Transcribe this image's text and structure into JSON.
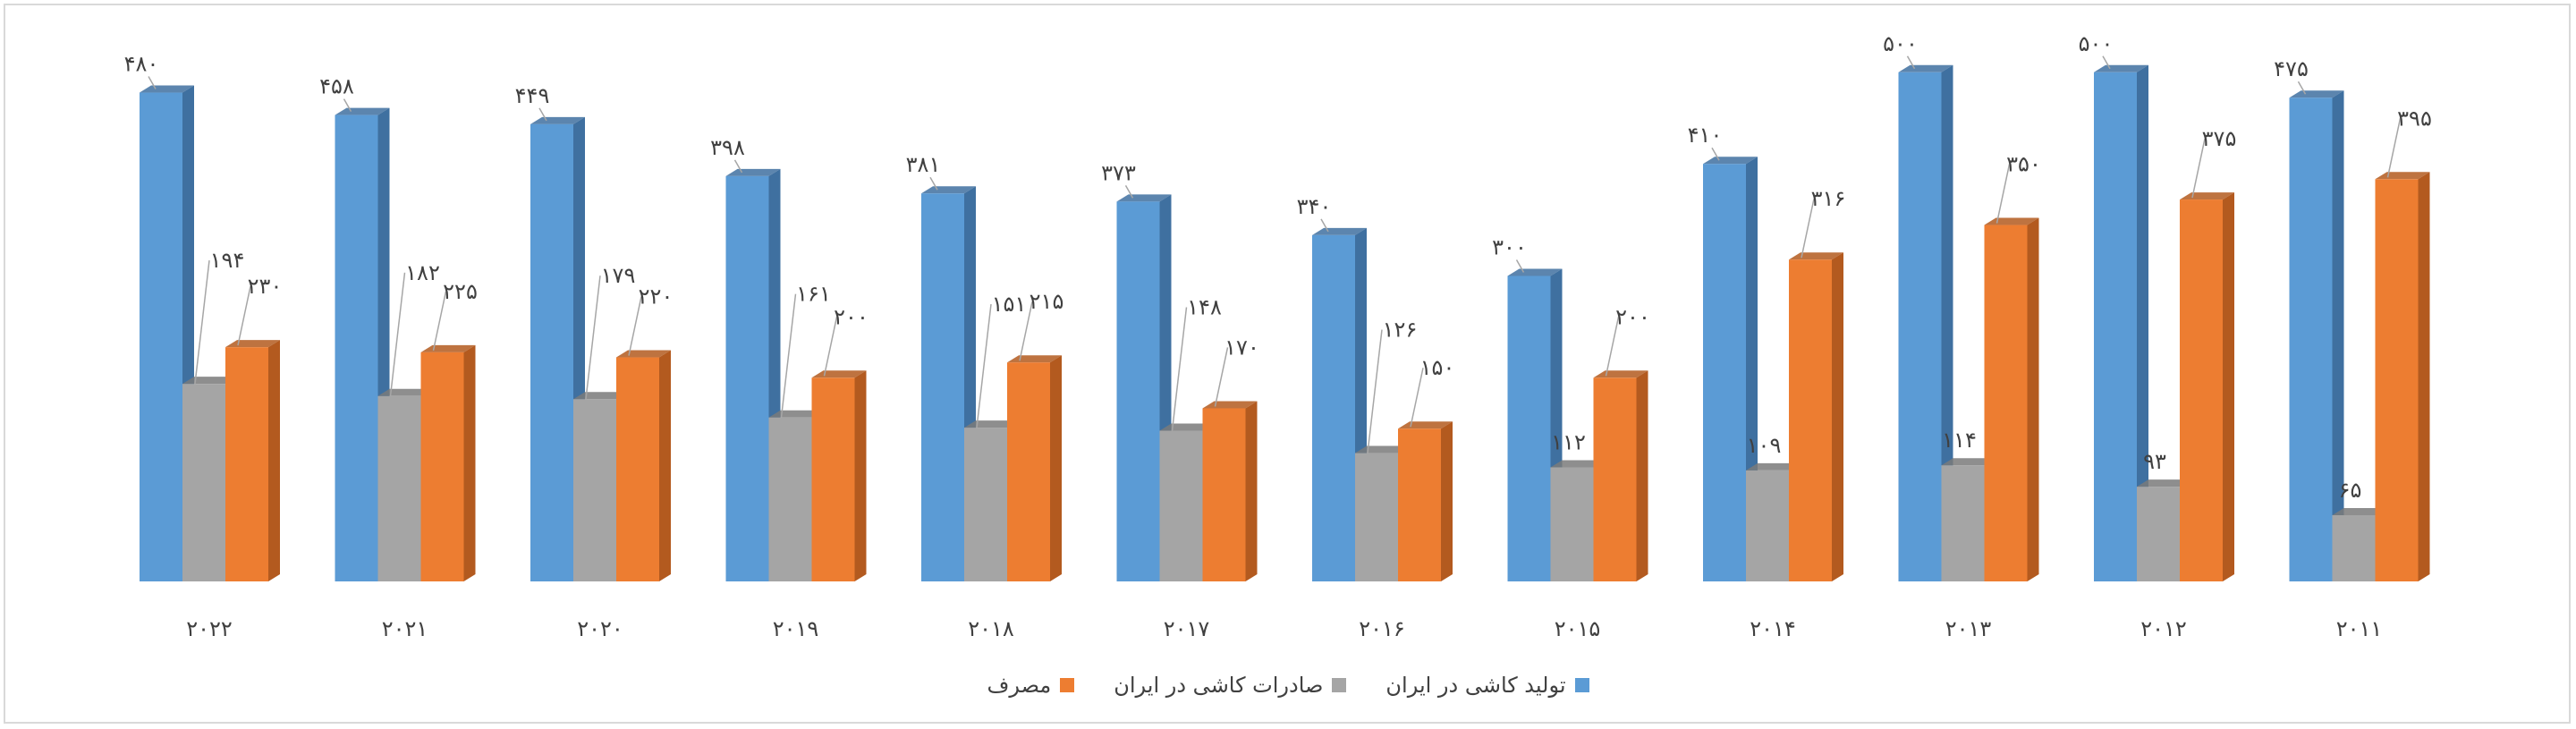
{
  "chart_data": {
    "type": "bar",
    "title": "",
    "xlabel": "",
    "ylabel": "",
    "ylim": [
      0,
      520
    ],
    "grid": false,
    "legend_position": "bottom",
    "categories": [
      "2022",
      "2021",
      "2020",
      "2019",
      "2018",
      "2017",
      "2016",
      "2015",
      "2014",
      "2013",
      "2012",
      "2011"
    ],
    "category_labels": [
      "۲۰۲۲",
      "۲۰۲۱",
      "۲۰۲۰",
      "۲۰۱۹",
      "۲۰۱۸",
      "۲۰۱۷",
      "۲۰۱۶",
      "۲۰۱۵",
      "۲۰۱۴",
      "۲۰۱۳",
      "۲۰۱۲",
      "۲۰۱۱"
    ],
    "series": [
      {
        "name": "تولید کاشی در ایران",
        "color": "#5b9bd5",
        "side_color": "#3f70a0",
        "values": [
          480,
          458,
          449,
          398,
          381,
          373,
          340,
          300,
          410,
          500,
          500,
          475
        ],
        "labels": [
          "۴۸۰",
          "۴۵۸",
          "۴۴۹",
          "۳۹۸",
          "۳۸۱",
          "۳۷۳",
          "۳۴۰",
          "۳۰۰",
          "۴۱۰",
          "۵۰۰",
          "۵۰۰",
          "۴۷۵"
        ]
      },
      {
        "name": "صادرات کاشی در ایران",
        "color": "#a5a5a5",
        "side_color": "#7a7a7a",
        "values": [
          194,
          182,
          179,
          161,
          151,
          148,
          126,
          112,
          109,
          114,
          93,
          65
        ],
        "labels": [
          "۱۹۴",
          "۱۸۲",
          "۱۷۹",
          "۱۶۱",
          "۱۵۱",
          "۱۴۸",
          "۱۲۶",
          "۱۱۲",
          "۱۰۹",
          "۱۱۴",
          "۹۳",
          "۶۵"
        ]
      },
      {
        "name": "مصرف",
        "color": "#ed7d31",
        "side_color": "#b35a1f",
        "values": [
          230,
          225,
          220,
          200,
          215,
          170,
          150,
          200,
          316,
          350,
          375,
          395
        ],
        "labels": [
          "۲۳۰",
          "۲۲۵",
          "۲۲۰",
          "۲۰۰",
          "۲۱۵",
          "۱۷۰",
          "۱۵۰",
          "۲۰۰",
          "۳۱۶",
          "۳۵۰",
          "۳۷۵",
          "۳۹۵"
        ]
      }
    ]
  }
}
